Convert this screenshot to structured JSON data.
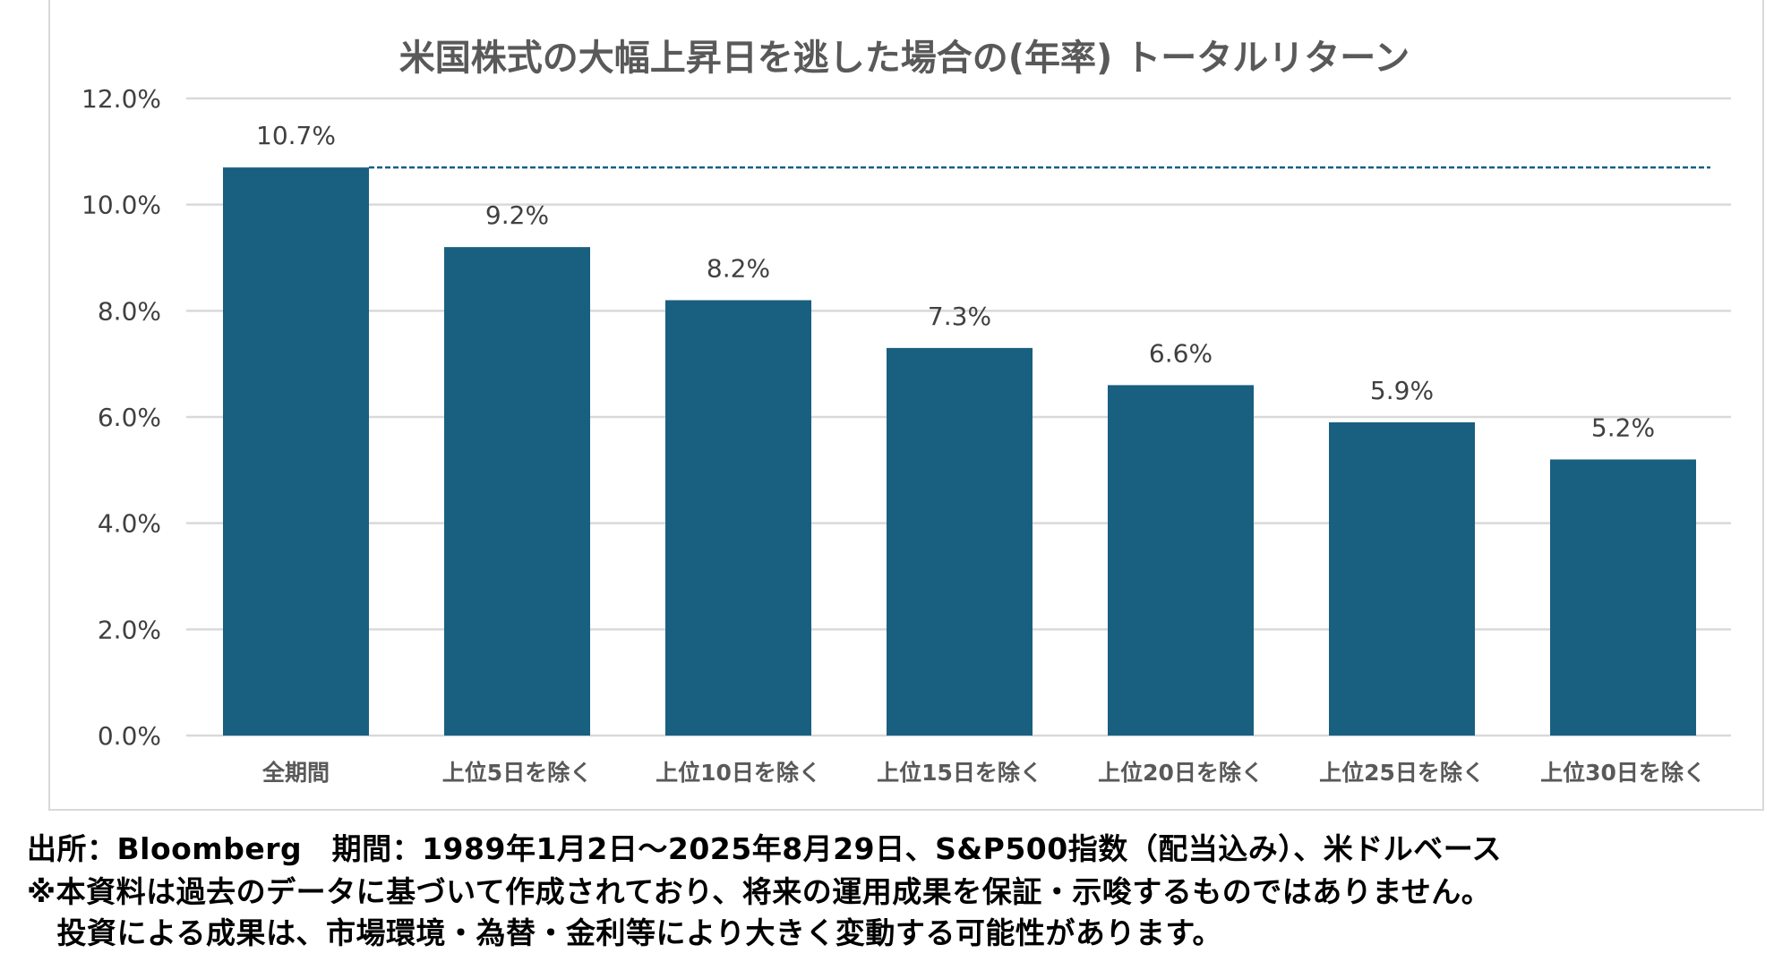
{
  "chart_data": {
    "type": "bar",
    "title": "米国株式の大幅上昇日を逃した場合の(年率) トータルリターン",
    "categories": [
      "全期間",
      "上位5日を除く",
      "上位10日を除く",
      "上位15日を除く",
      "上位20日を除く",
      "上位25日を除く",
      "上位30日を除く"
    ],
    "values": [
      10.7,
      9.2,
      8.2,
      7.3,
      6.6,
      5.9,
      5.2
    ],
    "data_labels": [
      "10.7%",
      "9.2%",
      "8.2%",
      "7.3%",
      "6.6%",
      "5.9%",
      "5.2%"
    ],
    "ylim": [
      0,
      12
    ],
    "yticks": [
      0,
      2,
      4,
      6,
      8,
      10,
      12
    ],
    "ytick_labels": [
      "0.0%",
      "2.0%",
      "4.0%",
      "6.0%",
      "8.0%",
      "10.0%",
      "12.0%"
    ],
    "reference_line": 10.7,
    "grid": true,
    "xlabel": "",
    "ylabel": "",
    "colors": {
      "bar": "#195f80",
      "grid": "#d9d9d9",
      "text": "#404040",
      "dash": "#195f80"
    }
  },
  "footnotes": {
    "source": "出所：Bloomberg　期間：1989年1月2日～2025年8月29日、S&P500指数（配当込み）、米ドルベース",
    "disclaimer1": "※本資料は過去のデータに基づいて作成されており、将来の運用成果を保証・示唆するものではありません。",
    "disclaimer2": "　投資による成果は、市場環境・為替・金利等により大きく変動する可能性があります。"
  }
}
